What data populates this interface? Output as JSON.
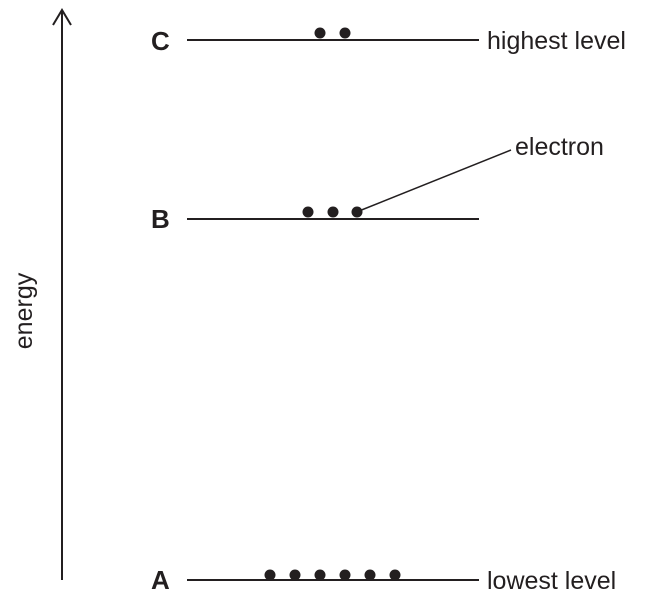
{
  "diagram": {
    "axis_label": "energy",
    "callout_label": "electron",
    "colors": {
      "ink": "#231f20",
      "background": "#ffffff"
    },
    "levels": [
      {
        "id": "C",
        "letter": "C",
        "description": "highest level",
        "electron_count": 2
      },
      {
        "id": "B",
        "letter": "B",
        "description": "",
        "electron_count": 3
      },
      {
        "id": "A",
        "letter": "A",
        "description": "lowest level",
        "electron_count": 6
      }
    ]
  }
}
